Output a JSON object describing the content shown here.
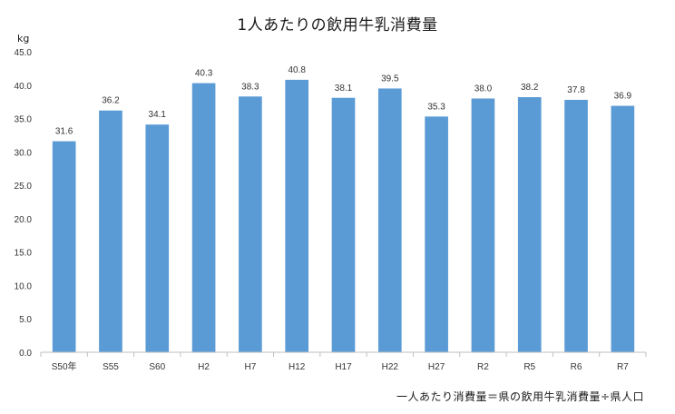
{
  "chart_data": {
    "type": "bar",
    "title": "1人あたりの飲用牛乳消費量",
    "ylabel": "kg",
    "xlabel": "",
    "categories": [
      "S50年",
      "S55",
      "S60",
      "H2",
      "H7",
      "H12",
      "H17",
      "H22",
      "H27",
      "R2",
      "R5",
      "R6",
      "R7"
    ],
    "values": [
      31.6,
      36.2,
      34.1,
      40.3,
      38.3,
      40.8,
      38.1,
      39.5,
      35.3,
      38.0,
      38.2,
      37.8,
      36.9
    ],
    "value_labels": [
      "31.6",
      "36.2",
      "34.1",
      "40.3",
      "38.3",
      "40.8",
      "38.1",
      "39.5",
      "35.3",
      "38.0",
      "38.2",
      "37.8",
      "36.9"
    ],
    "yticks": [
      "0.0",
      "5.0",
      "10.0",
      "15.0",
      "20.0",
      "25.0",
      "30.0",
      "35.0",
      "40.0",
      "45.0"
    ],
    "ylim": [
      0,
      45
    ],
    "grid": false,
    "legend": "none",
    "bar_color": "#5b9bd5",
    "note": "一人あたり消費量＝県の飲用牛乳消費量÷県人口"
  }
}
